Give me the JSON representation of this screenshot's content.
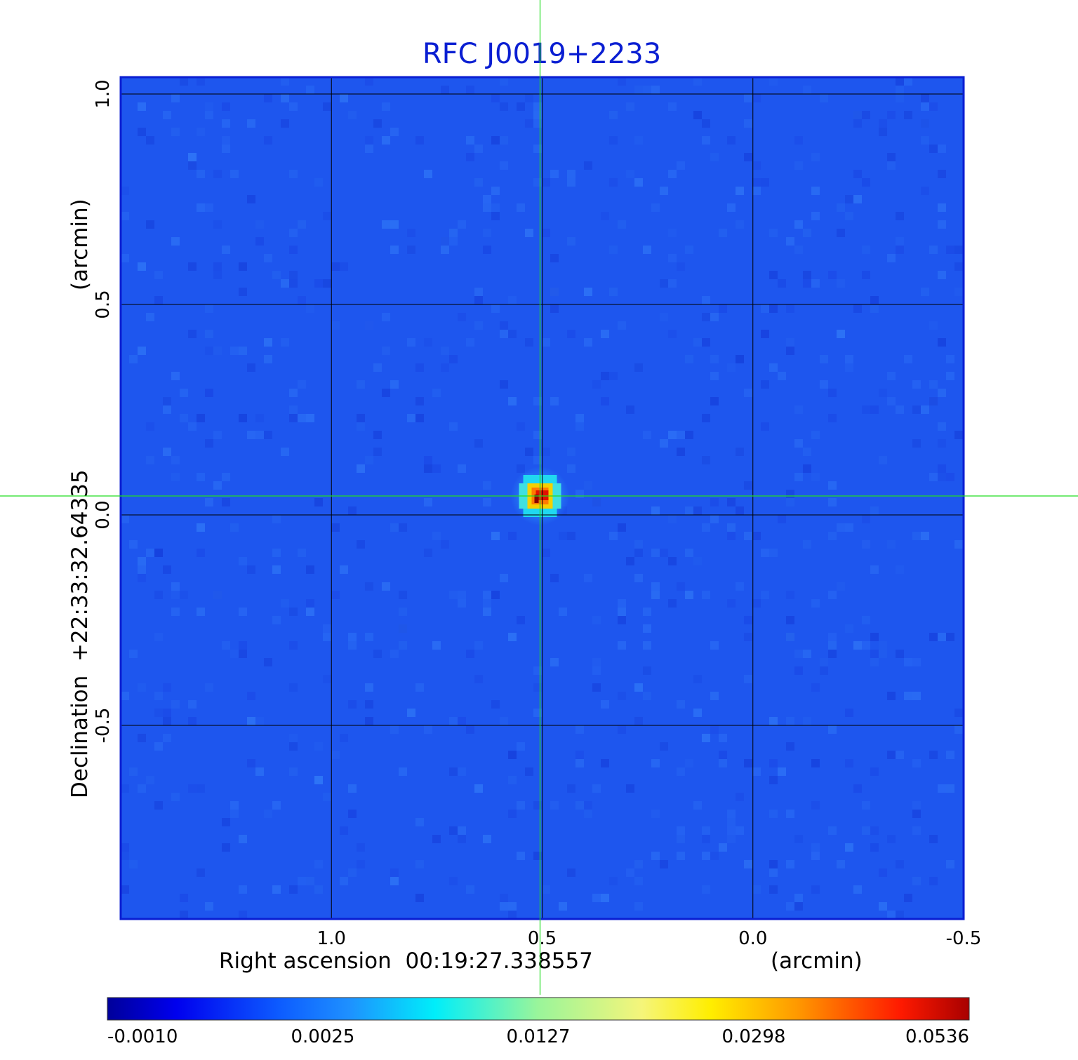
{
  "chart_data": {
    "type": "heatmap",
    "title": "RFC J0019+2233",
    "xlabel": "Right ascension  00:19:27.338557",
    "xunit": "(arcmin)",
    "ylabel": "Declination  +22:33:32.64335",
    "yunit": "(arcmin)",
    "xlim": [
      1.5,
      -0.5
    ],
    "ylim": [
      -0.96,
      1.04
    ],
    "x_ticks": [
      {
        "value": 1.0,
        "label": "1.0"
      },
      {
        "value": 0.5,
        "label": "0.5"
      },
      {
        "value": 0.0,
        "label": "0.0"
      },
      {
        "value": -0.5,
        "label": "-0.5"
      }
    ],
    "y_ticks": [
      {
        "value": 1.0,
        "label": "1.0"
      },
      {
        "value": 0.5,
        "label": "0.5"
      },
      {
        "value": 0.0,
        "label": "0.0"
      },
      {
        "value": -0.5,
        "label": "-0.5"
      }
    ],
    "grid": true,
    "crosshair": {
      "x": 0.505,
      "y": 0.045
    },
    "source": {
      "x": 0.505,
      "y": 0.045,
      "peak": 0.0536
    },
    "colormap": "jet",
    "colorbar": {
      "orientation": "horizontal",
      "position": "bottom",
      "labels": [
        "-0.0010",
        "0.0025",
        "0.0127",
        "0.0298",
        "0.0536"
      ]
    },
    "colors": {
      "title": "#0a1ed2",
      "crosshair": "#22dd22",
      "grid": "#000000",
      "frame": "#0a1ed2"
    }
  }
}
